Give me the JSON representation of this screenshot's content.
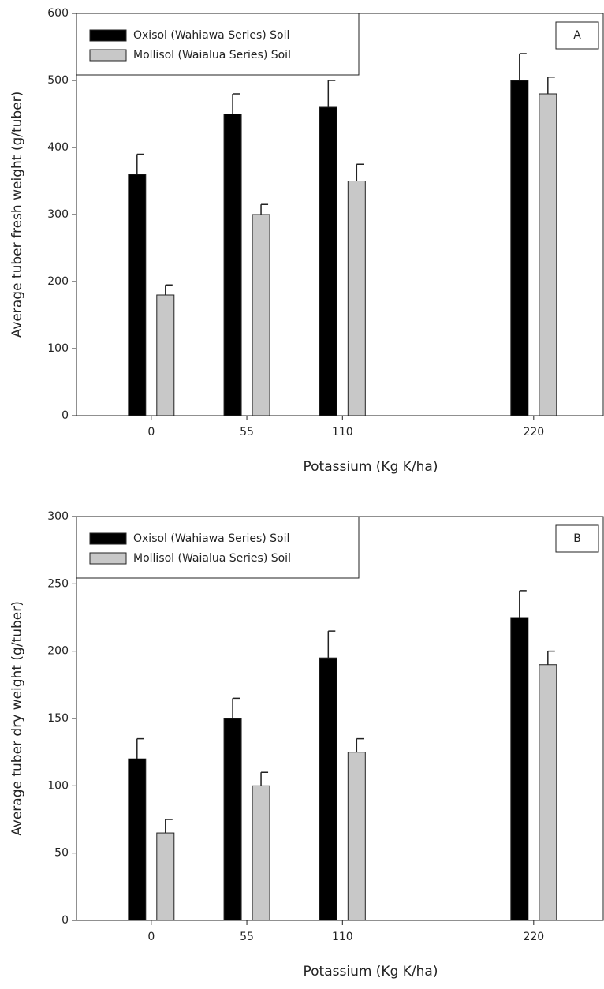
{
  "chart_data": [
    {
      "type": "bar",
      "panel_label": "A",
      "x": [
        0,
        55,
        110,
        220
      ],
      "xlim": [
        -43,
        260
      ],
      "xticks": [
        0,
        55,
        110,
        220
      ],
      "xlabel": "Potassium (Kg K/ha)",
      "ylabel": "Average tuber fresh weight (g/tuber)",
      "ylim": [
        0,
        600
      ],
      "yticks": [
        0,
        100,
        200,
        300,
        400,
        500,
        600
      ],
      "grid": false,
      "legend": "upper left",
      "series": [
        {
          "name": "Oxisol (Wahiawa Series) Soil",
          "color": "#000000",
          "values": [
            360,
            450,
            460,
            500
          ],
          "errors": [
            30,
            30,
            40,
            40
          ]
        },
        {
          "name": "Mollisol (Waialua Series) Soil",
          "color": "#c8c8c8",
          "values": [
            180,
            300,
            350,
            480
          ],
          "errors": [
            15,
            15,
            25,
            25
          ]
        }
      ]
    },
    {
      "type": "bar",
      "panel_label": "B",
      "x": [
        0,
        55,
        110,
        220
      ],
      "xlim": [
        -43,
        260
      ],
      "xticks": [
        0,
        55,
        110,
        220
      ],
      "xlabel": "Potassium (Kg K/ha)",
      "ylabel": "Average tuber dry weight (g/tuber)",
      "ylim": [
        0,
        300
      ],
      "yticks": [
        0,
        50,
        100,
        150,
        200,
        250,
        300
      ],
      "grid": false,
      "legend": "upper left",
      "series": [
        {
          "name": "Oxisol (Wahiawa Series) Soil",
          "color": "#000000",
          "values": [
            120,
            150,
            195,
            225
          ],
          "errors": [
            15,
            15,
            20,
            20
          ]
        },
        {
          "name": "Mollisol (Waialua Series) Soil",
          "color": "#c8c8c8",
          "values": [
            65,
            100,
            125,
            190
          ],
          "errors": [
            10,
            10,
            10,
            10
          ]
        }
      ]
    }
  ]
}
